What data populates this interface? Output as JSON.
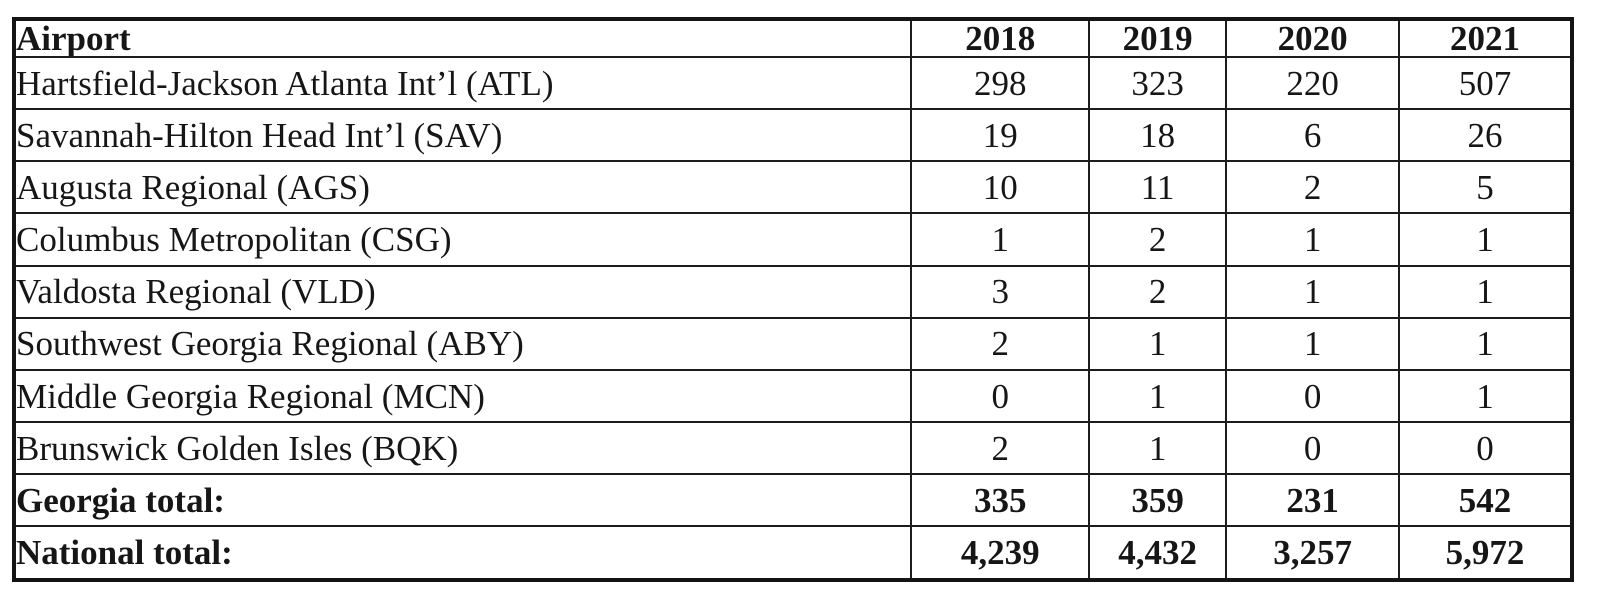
{
  "table": {
    "columns": [
      "Airport",
      "2018",
      "2019",
      "2020",
      "2021"
    ],
    "rows": [
      {
        "airport": "Hartsfield-Jackson Atlanta Int’l (ATL)",
        "values": [
          "298",
          "323",
          "220",
          "507"
        ],
        "bold": false
      },
      {
        "airport": "Savannah-Hilton Head Int’l (SAV)",
        "values": [
          "19",
          "18",
          "6",
          "26"
        ],
        "bold": false
      },
      {
        "airport": "Augusta Regional (AGS)",
        "values": [
          "10",
          "11",
          "2",
          "5"
        ],
        "bold": false
      },
      {
        "airport": "Columbus Metropolitan (CSG)",
        "values": [
          "1",
          "2",
          "1",
          "1"
        ],
        "bold": false
      },
      {
        "airport": "Valdosta Regional (VLD)",
        "values": [
          "3",
          "2",
          "1",
          "1"
        ],
        "bold": false
      },
      {
        "airport": "Southwest Georgia Regional (ABY)",
        "values": [
          "2",
          "1",
          "1",
          "1"
        ],
        "bold": false
      },
      {
        "airport": "Middle Georgia Regional (MCN)",
        "values": [
          "0",
          "1",
          "0",
          "1"
        ],
        "bold": false
      },
      {
        "airport": "Brunswick Golden Isles (BQK)",
        "values": [
          "2",
          "1",
          "0",
          "0"
        ],
        "bold": false
      },
      {
        "airport": "Georgia total:",
        "values": [
          "335",
          "359",
          "231",
          "542"
        ],
        "bold": true
      },
      {
        "airport": "National total:",
        "values": [
          "4,239",
          "4,432",
          "3,257",
          "5,972"
        ],
        "bold": true
      }
    ]
  }
}
